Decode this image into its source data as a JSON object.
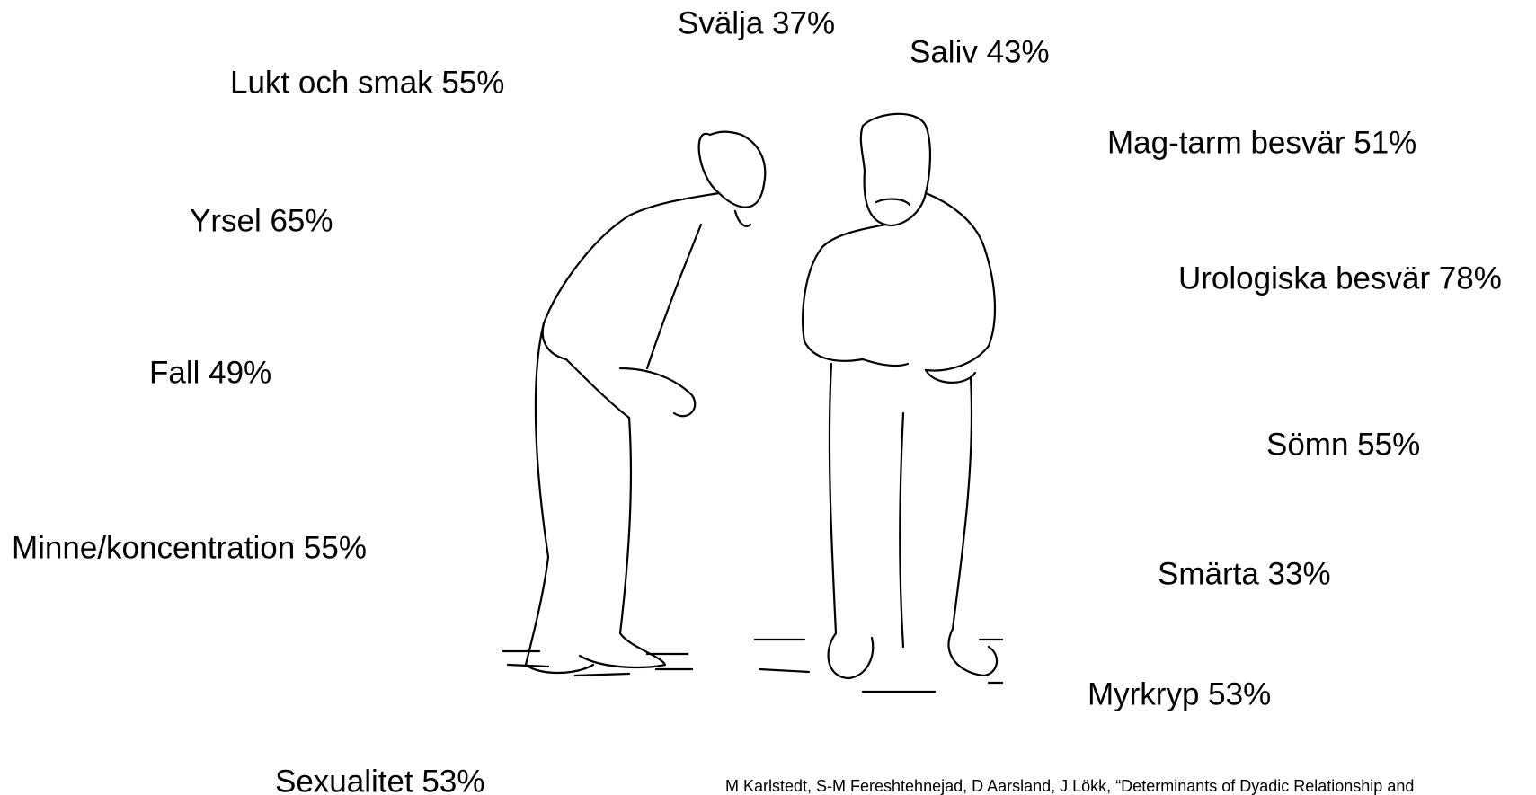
{
  "labels": [
    {
      "text": "Svälja 37%"
    },
    {
      "text": "Saliv 43%"
    },
    {
      "text": "Lukt och smak 55%"
    },
    {
      "text": "Mag-tarm besvär 51%"
    },
    {
      "text": "Yrsel 65%"
    },
    {
      "text": "Urologiska besvär 78%"
    },
    {
      "text": "Fall 49%"
    },
    {
      "text": "Sömn 55%"
    },
    {
      "text": "Minne/koncentration 55%"
    },
    {
      "text": "Smärta 33%"
    },
    {
      "text": "Myrkryp 53%"
    },
    {
      "text": "Sexualitet 53%"
    }
  ],
  "citation": "M Karlstedt, S-M Fereshtehnejad, D Aarsland, J Lökk, “Determinants of Dyadic Relationship and"
}
